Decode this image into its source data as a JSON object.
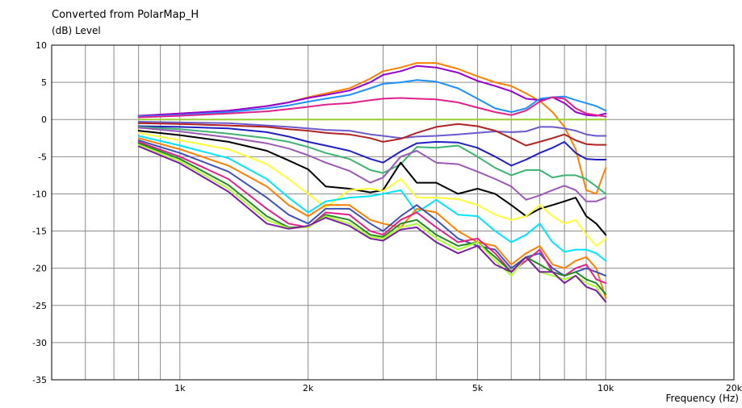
{
  "chart_data": {
    "type": "line",
    "title": "Converted from PolarMap_H",
    "ylabel": "(dB)  Level",
    "xlabel": "Frequency  (Hz)",
    "xscale": "log",
    "xlim": [
      500,
      20000
    ],
    "ylim": [
      -35,
      10
    ],
    "grid": true,
    "xtick_labels": [
      {
        "value": 1000,
        "label": "1k"
      },
      {
        "value": 2000,
        "label": "2k"
      },
      {
        "value": 5000,
        "label": "5k"
      },
      {
        "value": 10000,
        "label": "10k"
      },
      {
        "value": 20000,
        "label": "20k"
      }
    ],
    "ytick_labels": [
      {
        "value": 10,
        "label": "10"
      },
      {
        "value": 5,
        "label": "5"
      },
      {
        "value": 0,
        "label": "0"
      },
      {
        "value": -5,
        "label": "-5"
      },
      {
        "value": -10,
        "label": "-10"
      },
      {
        "value": -15,
        "label": "-15"
      },
      {
        "value": -20,
        "label": "-20"
      },
      {
        "value": -25,
        "label": "-25"
      },
      {
        "value": -30,
        "label": "-30"
      },
      {
        "value": -35,
        "label": "-35"
      }
    ],
    "x": [
      800,
      1000,
      1300,
      1600,
      1800,
      2000,
      2200,
      2500,
      2800,
      3000,
      3300,
      3600,
      4000,
      4500,
      5000,
      5500,
      6000,
      6500,
      7000,
      7500,
      8000,
      8500,
      9000,
      9500,
      10000
    ],
    "series": [
      {
        "color": "#ff7f00",
        "values": [
          0.5,
          0.8,
          1.2,
          1.8,
          2.3,
          3.0,
          3.5,
          4.2,
          5.5,
          6.5,
          7.0,
          7.6,
          7.6,
          6.8,
          5.8,
          5.0,
          4.5,
          3.5,
          2.5,
          1.0,
          -1.0,
          -4.0,
          -9.5,
          -10.0,
          -6.5
        ]
      },
      {
        "color": "#9400d3",
        "values": [
          0.5,
          0.8,
          1.2,
          1.8,
          2.3,
          2.9,
          3.3,
          3.9,
          5.0,
          6.0,
          6.5,
          7.2,
          7.0,
          6.3,
          5.2,
          4.5,
          3.8,
          2.8,
          2.6,
          3.0,
          2.2,
          1.0,
          0.6,
          0.5,
          0.8
        ]
      },
      {
        "color": "#1e90ff",
        "values": [
          0.4,
          0.6,
          1.0,
          1.5,
          1.9,
          2.4,
          2.8,
          3.3,
          4.2,
          4.8,
          5.0,
          5.3,
          5.1,
          4.2,
          2.8,
          1.5,
          1.0,
          1.5,
          2.8,
          3.0,
          3.1,
          2.6,
          2.2,
          1.8,
          1.2
        ]
      },
      {
        "color": "#e0218a",
        "values": [
          0.3,
          0.5,
          0.8,
          1.1,
          1.4,
          1.7,
          2.0,
          2.2,
          2.6,
          2.8,
          2.9,
          2.8,
          2.7,
          2.3,
          1.6,
          1.0,
          0.6,
          1.2,
          2.4,
          3.0,
          2.8,
          1.5,
          0.8,
          0.6,
          0.4
        ]
      },
      {
        "color": "#9acd32",
        "values": [
          0,
          0,
          0,
          0,
          0,
          0,
          0,
          0,
          0,
          0,
          0,
          0,
          0,
          0,
          0,
          0,
          0,
          0,
          0,
          0,
          0,
          0,
          0,
          0,
          0
        ]
      },
      {
        "color": "#6a5acd",
        "values": [
          -0.3,
          -0.4,
          -0.5,
          -0.8,
          -1.0,
          -1.2,
          -1.4,
          -1.5,
          -2.0,
          -2.2,
          -2.5,
          -2.3,
          -2.2,
          -2.0,
          -1.8,
          -1.6,
          -1.7,
          -1.6,
          -1.0,
          -1.0,
          -1.2,
          -1.5,
          -2.0,
          -2.2,
          -2.2
        ]
      },
      {
        "color": "#b22222",
        "values": [
          -0.5,
          -0.6,
          -0.8,
          -1.0,
          -1.3,
          -1.5,
          -1.8,
          -2.0,
          -2.5,
          -3.0,
          -2.6,
          -1.8,
          -1.0,
          -0.6,
          -0.9,
          -1.5,
          -2.5,
          -3.5,
          -3.0,
          -2.5,
          -2.0,
          -2.8,
          -3.3,
          -3.4,
          -3.4
        ]
      },
      {
        "color": "#2020c0",
        "values": [
          -0.9,
          -1.0,
          -1.2,
          -1.7,
          -2.3,
          -3.0,
          -3.5,
          -4.2,
          -5.3,
          -5.8,
          -4.3,
          -3.2,
          -3.0,
          -3.1,
          -3.8,
          -5.0,
          -6.2,
          -5.4,
          -4.5,
          -3.8,
          -3.0,
          -4.5,
          -5.3,
          -5.4,
          -5.4
        ]
      },
      {
        "color": "#3cb371",
        "values": [
          -1.0,
          -1.3,
          -1.9,
          -2.5,
          -3.0,
          -3.7,
          -4.5,
          -5.3,
          -6.8,
          -7.2,
          -6.0,
          -3.7,
          -3.8,
          -3.5,
          -5.0,
          -6.5,
          -7.5,
          -6.8,
          -6.8,
          -7.8,
          -7.5,
          -7.5,
          -8.0,
          -9.0,
          -10.0
        ]
      },
      {
        "color": "#9b59b6",
        "values": [
          -1.1,
          -1.6,
          -2.4,
          -3.2,
          -3.9,
          -4.8,
          -5.8,
          -6.9,
          -8.5,
          -7.8,
          -5.0,
          -4.2,
          -5.8,
          -6.0,
          -7.0,
          -8.0,
          -9.0,
          -10.8,
          -10.2,
          -9.5,
          -8.9,
          -9.5,
          -11.0,
          -11.0,
          -10.5
        ]
      },
      {
        "color": "#000000",
        "values": [
          -1.5,
          -2.1,
          -3.0,
          -4.2,
          -5.5,
          -6.7,
          -9.0,
          -9.3,
          -9.8,
          -9.5,
          -5.8,
          -8.5,
          -8.5,
          -10.0,
          -9.3,
          -10.0,
          -11.5,
          -13.0,
          -12.0,
          -11.5,
          -11.0,
          -10.5,
          -13.0,
          -14.0,
          -15.5
        ]
      },
      {
        "color": "#ffff33",
        "values": [
          -1.8,
          -2.8,
          -4.0,
          -6.0,
          -8.0,
          -10.0,
          -11.8,
          -9.5,
          -9.3,
          -9.6,
          -8.0,
          -10.5,
          -10.5,
          -10.7,
          -11.5,
          -12.8,
          -13.5,
          -13.0,
          -11.5,
          -13.0,
          -14.0,
          -13.5,
          -15.5,
          -17.0,
          -16.0
        ]
      },
      {
        "color": "#00e5ff",
        "values": [
          -2.2,
          -3.5,
          -5.2,
          -8.0,
          -10.5,
          -12.5,
          -11.0,
          -10.5,
          -10.3,
          -10.0,
          -9.5,
          -12.5,
          -10.8,
          -12.8,
          -13.0,
          -15.0,
          -16.5,
          -15.5,
          -14.0,
          -16.5,
          -17.8,
          -17.5,
          -17.5,
          -18.0,
          -19.0
        ]
      },
      {
        "color": "#ff7f00",
        "values": [
          -2.5,
          -4.0,
          -6.2,
          -9.0,
          -11.5,
          -13.0,
          -11.5,
          -11.5,
          -13.5,
          -14.0,
          -14.5,
          -12.0,
          -12.5,
          -15.0,
          -16.5,
          -17.0,
          -19.5,
          -18.0,
          -17.0,
          -19.5,
          -20.0,
          -19.0,
          -18.5,
          -20.0,
          -24.0
        ]
      },
      {
        "color": "#3f51b5",
        "values": [
          -2.8,
          -4.5,
          -7.0,
          -10.5,
          -12.8,
          -14.0,
          -12.0,
          -12.0,
          -14.0,
          -15.0,
          -13.0,
          -11.5,
          -13.5,
          -16.0,
          -17.0,
          -17.5,
          -20.0,
          -18.5,
          -18.0,
          -20.0,
          -21.0,
          -20.5,
          -20.0,
          -20.5,
          -21.0
        ]
      },
      {
        "color": "#e0218a",
        "values": [
          -3.0,
          -5.0,
          -8.0,
          -12.0,
          -14.0,
          -14.5,
          -12.5,
          -12.8,
          -15.0,
          -15.5,
          -13.5,
          -12.5,
          -14.5,
          -16.5,
          -16.0,
          -18.0,
          -20.5,
          -19.0,
          -17.5,
          -20.5,
          -21.0,
          -20.0,
          -19.5,
          -21.5,
          -22.0
        ]
      },
      {
        "color": "#228b22",
        "values": [
          -3.2,
          -5.3,
          -8.8,
          -13.0,
          -14.5,
          -14.5,
          -12.8,
          -13.5,
          -15.5,
          -15.8,
          -14.0,
          -13.5,
          -15.5,
          -17.0,
          -16.5,
          -18.5,
          -20.5,
          -18.5,
          -19.5,
          -20.5,
          -21.0,
          -20.5,
          -21.5,
          -22.0,
          -23.5
        ]
      },
      {
        "color": "#adff2f",
        "values": [
          -3.4,
          -5.6,
          -9.3,
          -13.5,
          -14.6,
          -14.5,
          -13.0,
          -14.0,
          -15.8,
          -16.0,
          -14.5,
          -14.0,
          -16.0,
          -17.5,
          -16.5,
          -19.0,
          -21.0,
          -18.5,
          -20.5,
          -21.0,
          -21.5,
          -21.0,
          -22.0,
          -22.5,
          -24.5
        ]
      },
      {
        "color": "#7b1fa2",
        "values": [
          -3.6,
          -5.9,
          -9.7,
          -14.0,
          -14.7,
          -14.3,
          -13.2,
          -14.3,
          -16.0,
          -16.3,
          -14.8,
          -14.5,
          -16.5,
          -18.0,
          -17.0,
          -19.5,
          -20.5,
          -18.5,
          -20.5,
          -20.5,
          -22.0,
          -21.0,
          -22.5,
          -23.0,
          -24.5
        ]
      }
    ]
  }
}
